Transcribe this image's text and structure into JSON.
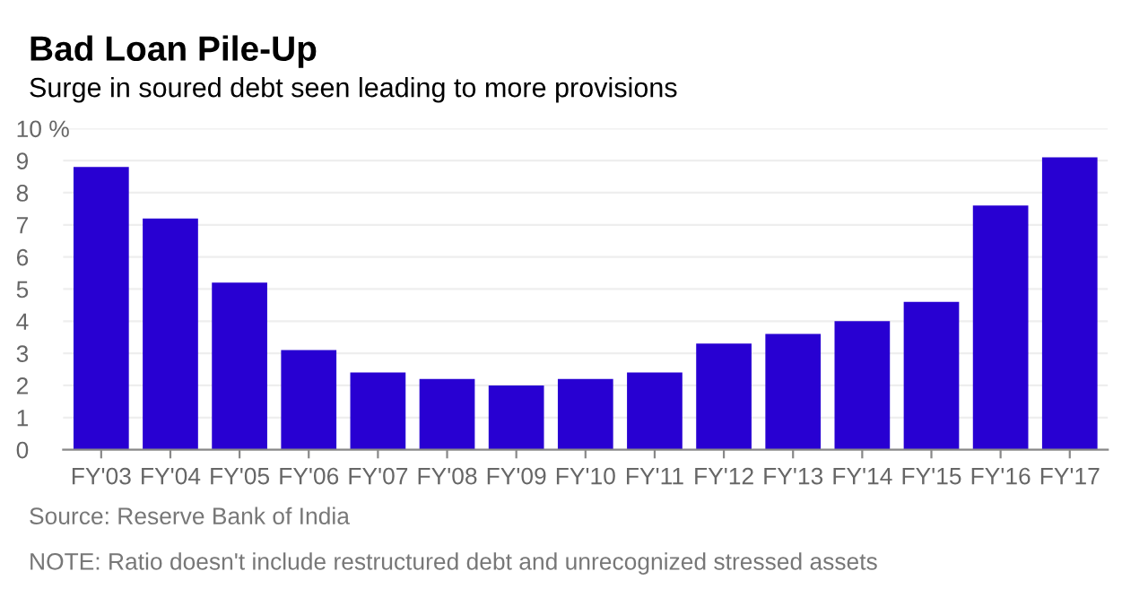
{
  "chart_data": {
    "type": "bar",
    "title": "Bad Loan Pile-Up",
    "subtitle": "Surge in soured debt seen leading to more provisions",
    "categories": [
      "FY'03",
      "FY'04",
      "FY'05",
      "FY'06",
      "FY'07",
      "FY'08",
      "FY'09",
      "FY'10",
      "FY'11",
      "FY'12",
      "FY'13",
      "FY'14",
      "FY'15",
      "FY'16",
      "FY'17"
    ],
    "values": [
      8.8,
      7.2,
      5.2,
      3.1,
      2.4,
      2.2,
      2.0,
      2.2,
      2.4,
      3.3,
      3.6,
      4.0,
      4.6,
      7.6,
      9.1
    ],
    "color": "#2800d2",
    "ylim": [
      0,
      10
    ],
    "yticks": [
      0,
      1,
      2,
      3,
      4,
      5,
      6,
      7,
      8,
      9,
      {
        "value": 10,
        "label": "10 %"
      }
    ],
    "grid": "y",
    "annotations": [
      "Source: Reserve Bank of India",
      "NOTE: Ratio doesn't include restructured debt and unrecognized stressed assets"
    ]
  }
}
